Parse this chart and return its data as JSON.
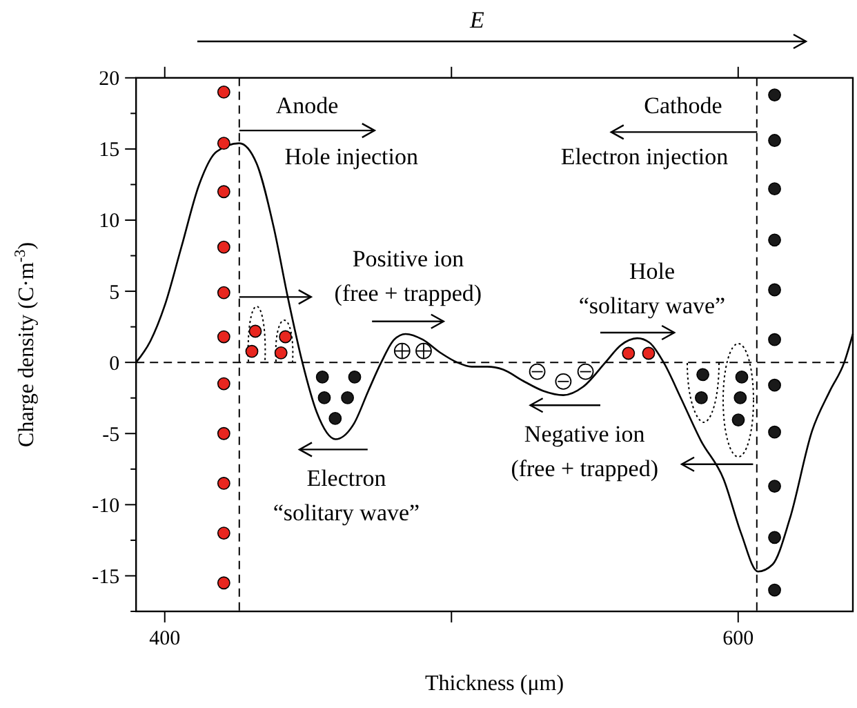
{
  "chart_data": {
    "type": "line",
    "xlabel": "Thickness (μm)",
    "ylabel": "Charge density (C·m$^{-3}$)",
    "xlim": [
      390,
      640
    ],
    "ylim": [
      -17.5,
      20
    ],
    "xticks": [
      400,
      {
        "value": 500,
        "label": null
      },
      600
    ],
    "yticks": [
      {
        "value": -17.5,
        "label": null
      },
      -15,
      {
        "value": -12.5,
        "label": null
      },
      -10,
      {
        "value": -7.5,
        "label": null
      },
      -5,
      {
        "value": -2.5,
        "label": null
      },
      0,
      {
        "value": 2.5,
        "label": null
      },
      5,
      {
        "value": 7.5,
        "label": null
      },
      10,
      {
        "value": 12.5,
        "label": null
      },
      15,
      {
        "value": 17.5,
        "label": null
      },
      20
    ],
    "grid": false,
    "marker": "none",
    "line_style": "solid",
    "series": [
      {
        "color": "#000000",
        "x": [
          390,
          395,
          400,
          405.8,
          412,
          418,
          426,
          432,
          438,
          443,
          448,
          453,
          459.6,
          466,
          471,
          475.5,
          480,
          484,
          490,
          496,
          502,
          507,
          512.5,
          518,
          525,
          532,
          539,
          546,
          553.7,
          559,
          564.8,
          569,
          574,
          580,
          587,
          594.9,
          601,
          606.9,
          612,
          618,
          625.8,
          632,
          637,
          640
        ],
        "values": [
          0,
          1.5,
          4,
          8.1,
          12.5,
          14.8,
          15.4,
          14,
          9.5,
          4.5,
          0,
          -3.5,
          -5.4,
          -4.3,
          -2,
          0,
          1.6,
          2.0,
          1.6,
          0.7,
          0,
          -0.3,
          -0.3,
          -0.5,
          -1.3,
          -2.0,
          -2.3,
          -1.7,
          0,
          1.2,
          1.7,
          1.4,
          0,
          -2.5,
          -5.5,
          -8.2,
          -12,
          -14.7,
          -14.2,
          -11,
          -4.8,
          -2,
          0,
          2.0
        ]
      }
    ],
    "ref_lines": [
      {
        "axis": "x",
        "value": 426,
        "line_style": "dashed",
        "color": "#000000"
      },
      {
        "axis": "x",
        "value": 606.5,
        "line_style": "dashed",
        "color": "#000000"
      },
      {
        "axis": "y",
        "value": 0,
        "line_style": "dashed",
        "color": "#000000"
      }
    ],
    "annotations": [
      "E",
      "Anode",
      {
        "text": "Hole injection",
        "x": 426,
        "y": 16.3
      },
      "Cathode",
      "Electron injection",
      {
        "text": "Positive ion\n(free + trapped)",
        "x": 426,
        "y": 4.6
      },
      "Hole\n“solitary wave”",
      "Electron\n“solitary wave”",
      "Negative ion\n(free + trapped)"
    ]
  }
}
